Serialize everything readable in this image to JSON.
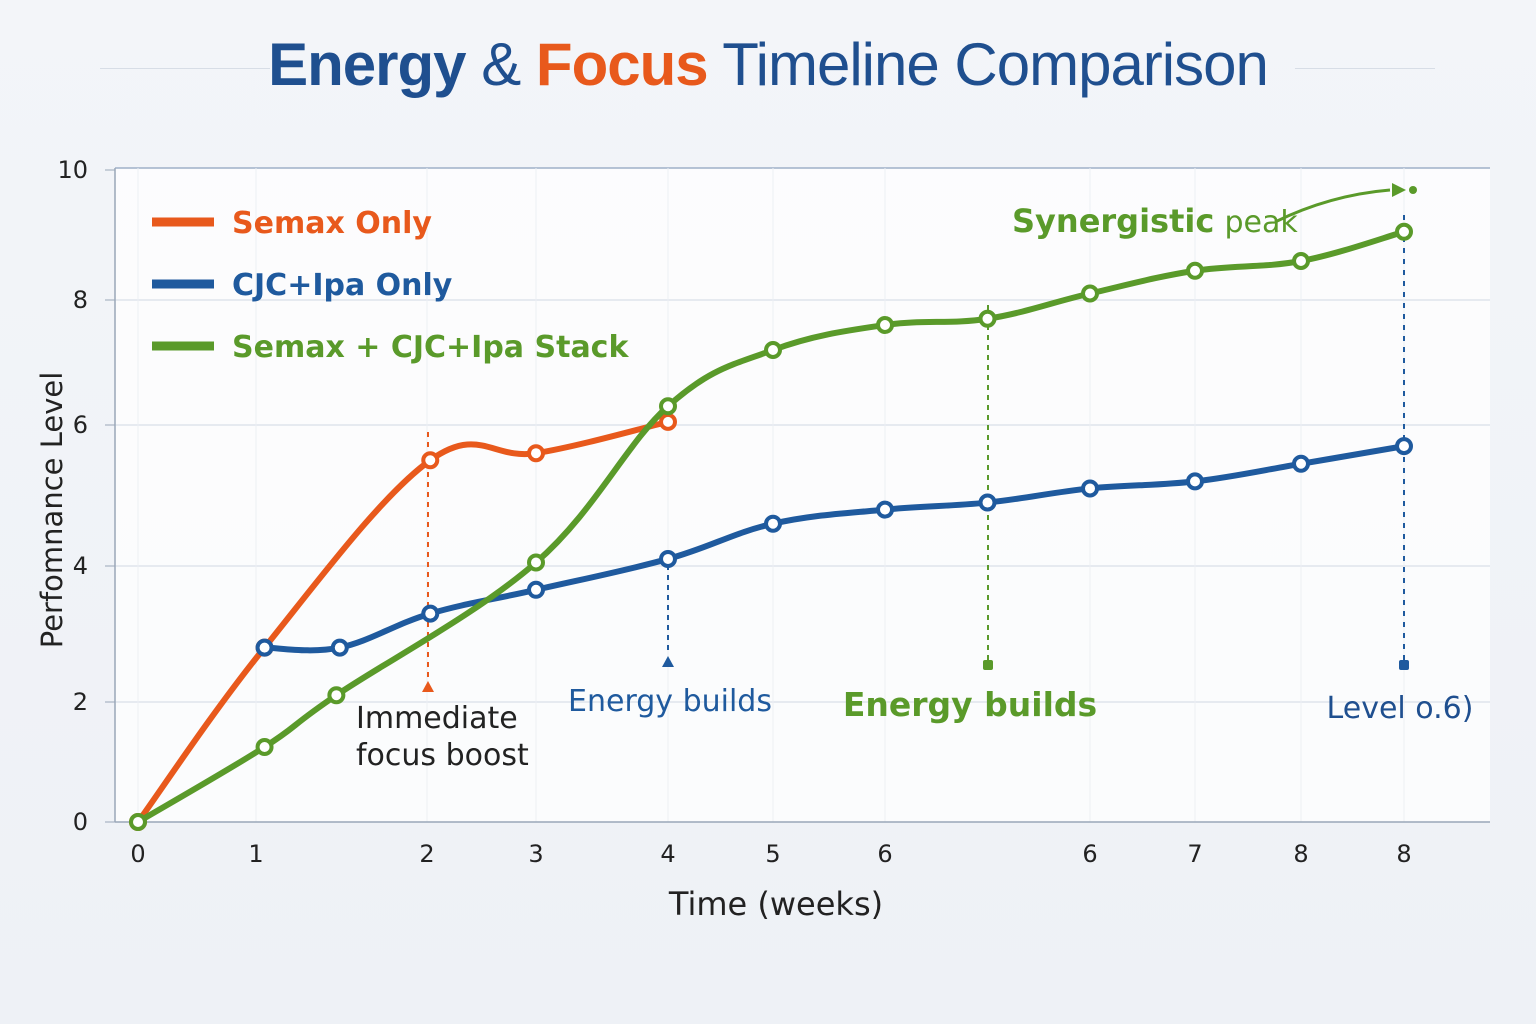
{
  "title": {
    "part1": "Energy",
    "part2": "&",
    "part3": "Focus",
    "part4": "Timeline Comparison"
  },
  "chart_data": {
    "type": "line",
    "xlabel": "Time (weeks)",
    "ylabel": "Perfomnance Level",
    "x_tick_labels": [
      "0",
      "1",
      "2",
      "3",
      "4",
      "5",
      "6",
      "6",
      "7",
      "8",
      "8"
    ],
    "y_ticks": [
      0,
      2,
      4,
      6,
      8,
      10
    ],
    "ylim": [
      0,
      10
    ],
    "grid": true,
    "legend_placement": "top-left",
    "series": [
      {
        "name": "Semax Only",
        "color": "#e8591c",
        "x": [
          0,
          1.05,
          2.03,
          3.0,
          4.0
        ],
        "y": [
          0,
          2.8,
          5.5,
          5.6,
          6.05
        ]
      },
      {
        "name": "CJC+Ipa Only",
        "color": "#1f5a9e",
        "x": [
          1.05,
          1.49,
          2.03,
          3.0,
          4.0,
          5.0,
          6.0,
          6.5,
          7.0,
          8.0,
          9.0,
          10.0
        ],
        "y": [
          2.8,
          2.8,
          3.3,
          3.65,
          4.1,
          4.6,
          4.8,
          4.9,
          5.1,
          5.2,
          5.45,
          5.7
        ]
      },
      {
        "name": "Semax + CJC+Ipa Stack",
        "color": "#5a9a2a",
        "x": [
          0,
          1.05,
          1.47,
          3.0,
          4.0,
          5.0,
          6.0,
          6.5,
          7.0,
          8.0,
          9.0,
          10.0
        ],
        "y": [
          0,
          1.25,
          2.1,
          4.05,
          6.3,
          7.2,
          7.6,
          7.7,
          8.1,
          8.45,
          8.6,
          9.05
        ]
      }
    ],
    "annotations": [
      {
        "text": "Immediate\nfocus boost",
        "line1": "Immediate",
        "line2": "focus boost",
        "color": "#222222"
      },
      {
        "text": "Energy builds",
        "color": "#1f5a9e"
      },
      {
        "text": "Energy builds",
        "color": "#5a9a2a"
      },
      {
        "text": "Level o.6)",
        "color": "#1f4f8f"
      },
      {
        "text": "Synergistic peak",
        "bold": "Synergistic",
        "rest": "peak",
        "color": "#5a9a2a"
      }
    ]
  }
}
